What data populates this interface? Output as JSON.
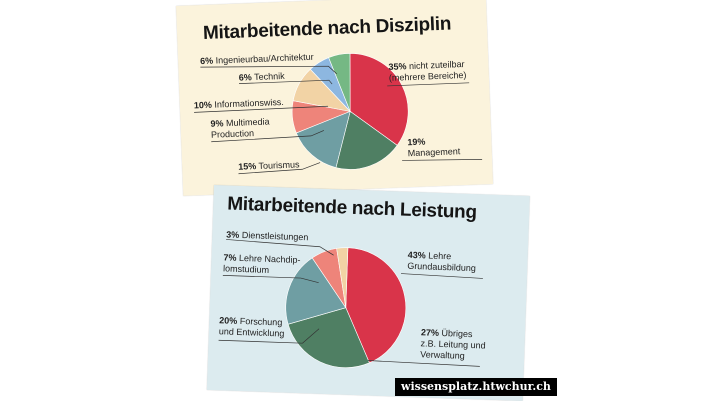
{
  "chart_data": [
    {
      "type": "pie",
      "title": "Mitarbeitende nach Disziplin",
      "slices": [
        {
          "pct": "35%",
          "label": "nicht zuteilbar",
          "sub": "(mehrere Bereiche)",
          "value": 35,
          "color": "#d9344a"
        },
        {
          "pct": "19%",
          "label": "",
          "sub": "Management",
          "value": 19,
          "color": "#4f7f63"
        },
        {
          "pct": "15%",
          "label": "Tourismus",
          "sub": "",
          "value": 15,
          "color": "#6f9ea3"
        },
        {
          "pct": "9%",
          "label": "Multimedia",
          "sub": "Production",
          "value": 9,
          "color": "#ee847a"
        },
        {
          "pct": "10%",
          "label": "Informationswiss.",
          "sub": "",
          "value": 10,
          "color": "#f2d3a5"
        },
        {
          "pct": "6%",
          "label": "Technik",
          "sub": "",
          "value": 6,
          "color": "#8db7e0"
        },
        {
          "pct": "6%",
          "label": "Ingenieurbau/Architektur",
          "sub": "",
          "value": 6,
          "color": "#75b884"
        }
      ]
    },
    {
      "type": "pie",
      "title": "Mitarbeitende nach Leistung",
      "slices": [
        {
          "pct": "43%",
          "label": "Lehre",
          "sub": "Grundausbildung",
          "value": 43,
          "color": "#d9344a"
        },
        {
          "pct": "27%",
          "label": "Übriges",
          "sub": "z.B. Leitung und",
          "sub2": "Verwaltung",
          "value": 27,
          "color": "#4f7f63"
        },
        {
          "pct": "20%",
          "label": "Forschung",
          "sub": "und Entwicklung",
          "value": 20,
          "color": "#6f9ea3"
        },
        {
          "pct": "7%",
          "label": "Lehre Nachdip-",
          "sub": "lomstudium",
          "value": 7,
          "color": "#ee847a"
        },
        {
          "pct": "3%",
          "label": "Dienstleistungen",
          "sub": "",
          "value": 3,
          "color": "#f2d3a5"
        }
      ]
    }
  ],
  "footer": "wissensplatz.htwchur.ch"
}
